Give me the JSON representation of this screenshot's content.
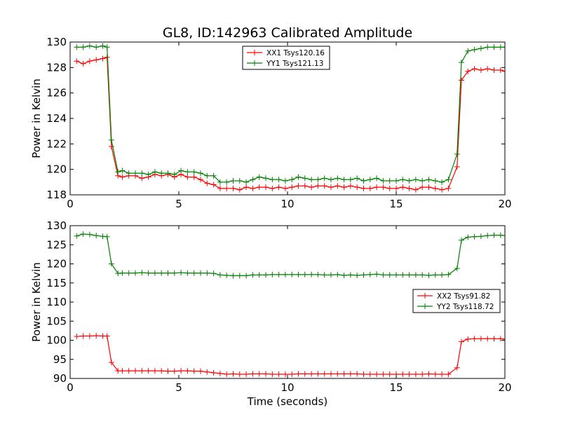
{
  "chart_data": [
    {
      "type": "line",
      "title": "GL8, ID:142963 Calibrated Amplitude",
      "xlabel": "",
      "ylabel": "Power in Kelvin",
      "xlim": [
        0,
        20
      ],
      "ylim": [
        118,
        130
      ],
      "xticks": [
        0,
        5,
        10,
        15,
        20
      ],
      "yticks": [
        118,
        120,
        122,
        124,
        126,
        128,
        130
      ],
      "legend_position": "top-center",
      "x": [
        0.3,
        0.6,
        0.9,
        1.2,
        1.5,
        1.7,
        1.9,
        2.2,
        2.4,
        2.7,
        3.0,
        3.3,
        3.6,
        3.9,
        4.2,
        4.5,
        4.8,
        5.1,
        5.4,
        5.7,
        6.0,
        6.3,
        6.6,
        6.9,
        7.2,
        7.5,
        7.8,
        8.1,
        8.4,
        8.7,
        9.0,
        9.3,
        9.6,
        9.9,
        10.2,
        10.5,
        10.8,
        11.1,
        11.4,
        11.7,
        12.0,
        12.3,
        12.6,
        12.9,
        13.2,
        13.5,
        13.8,
        14.1,
        14.4,
        14.7,
        15.0,
        15.3,
        15.6,
        15.9,
        16.2,
        16.5,
        16.8,
        17.1,
        17.4,
        17.8,
        18.0,
        18.3,
        18.6,
        18.9,
        19.2,
        19.5,
        19.8,
        20.0
      ],
      "series": [
        {
          "name": "XX1 Tsys120.16",
          "color": "#ff0000",
          "values": [
            128.5,
            128.3,
            128.5,
            128.6,
            128.7,
            128.8,
            121.8,
            119.5,
            119.4,
            119.5,
            119.5,
            119.3,
            119.4,
            119.6,
            119.5,
            119.6,
            119.4,
            119.6,
            119.4,
            119.4,
            119.2,
            118.9,
            118.8,
            118.5,
            118.5,
            118.5,
            118.4,
            118.6,
            118.5,
            118.6,
            118.6,
            118.5,
            118.6,
            118.5,
            118.6,
            118.7,
            118.7,
            118.6,
            118.7,
            118.7,
            118.6,
            118.7,
            118.6,
            118.7,
            118.6,
            118.5,
            118.5,
            118.6,
            118.6,
            118.5,
            118.5,
            118.6,
            118.5,
            118.4,
            118.6,
            118.6,
            118.5,
            118.4,
            118.5,
            120.2,
            127.0,
            127.7,
            127.9,
            127.8,
            127.9,
            127.8,
            127.8,
            127.7
          ]
        },
        {
          "name": "YY1 Tsys121.13",
          "color": "#008000",
          "values": [
            129.6,
            129.6,
            129.7,
            129.6,
            129.7,
            129.6,
            122.3,
            119.8,
            119.9,
            119.7,
            119.7,
            119.7,
            119.6,
            119.8,
            119.7,
            119.7,
            119.6,
            119.9,
            119.8,
            119.8,
            119.7,
            119.5,
            119.5,
            119.0,
            119.0,
            119.1,
            119.1,
            119.0,
            119.2,
            119.4,
            119.3,
            119.2,
            119.2,
            119.1,
            119.2,
            119.4,
            119.3,
            119.2,
            119.2,
            119.3,
            119.2,
            119.3,
            119.2,
            119.2,
            119.3,
            119.1,
            119.2,
            119.3,
            119.1,
            119.1,
            119.1,
            119.2,
            119.1,
            119.2,
            119.1,
            119.2,
            119.1,
            119.0,
            119.2,
            121.2,
            128.4,
            129.3,
            129.4,
            129.5,
            129.6,
            129.6,
            129.6,
            129.6
          ]
        }
      ]
    },
    {
      "type": "line",
      "title": "",
      "xlabel": "Time (seconds)",
      "ylabel": "Power in Kelvin",
      "xlim": [
        0,
        20
      ],
      "ylim": [
        90,
        130
      ],
      "xticks": [
        0,
        5,
        10,
        15,
        20
      ],
      "yticks": [
        90,
        95,
        100,
        105,
        110,
        115,
        120,
        125,
        130
      ],
      "legend_position": "center-right",
      "x": [
        0.3,
        0.6,
        0.9,
        1.2,
        1.5,
        1.7,
        1.9,
        2.2,
        2.4,
        2.7,
        3.0,
        3.3,
        3.6,
        3.9,
        4.2,
        4.5,
        4.8,
        5.1,
        5.4,
        5.7,
        6.0,
        6.3,
        6.6,
        6.9,
        7.2,
        7.5,
        7.8,
        8.1,
        8.4,
        8.7,
        9.0,
        9.3,
        9.6,
        9.9,
        10.2,
        10.5,
        10.8,
        11.1,
        11.4,
        11.7,
        12.0,
        12.3,
        12.6,
        12.9,
        13.2,
        13.5,
        13.8,
        14.1,
        14.4,
        14.7,
        15.0,
        15.3,
        15.6,
        15.9,
        16.2,
        16.5,
        16.8,
        17.1,
        17.4,
        17.8,
        18.0,
        18.3,
        18.6,
        18.9,
        19.2,
        19.5,
        19.8,
        20.0
      ],
      "series": [
        {
          "name": "XX2 Tsys91.82",
          "color": "#ff0000",
          "values": [
            101.0,
            101.1,
            101.1,
            101.2,
            101.1,
            101.1,
            94.2,
            92.0,
            92.0,
            92.0,
            92.0,
            92.0,
            92.0,
            92.0,
            92.0,
            91.9,
            91.9,
            92.0,
            92.0,
            91.9,
            91.9,
            91.7,
            91.5,
            91.3,
            91.1,
            91.2,
            91.1,
            91.1,
            91.2,
            91.2,
            91.2,
            91.1,
            91.1,
            91.1,
            91.1,
            91.2,
            91.2,
            91.2,
            91.2,
            91.2,
            91.2,
            91.2,
            91.2,
            91.2,
            91.2,
            91.1,
            91.1,
            91.1,
            91.1,
            91.1,
            91.1,
            91.1,
            91.1,
            91.1,
            91.1,
            91.2,
            91.1,
            91.1,
            91.1,
            92.8,
            99.6,
            100.3,
            100.4,
            100.4,
            100.4,
            100.4,
            100.4,
            100.3
          ]
        },
        {
          "name": "YY2 Tsys118.72",
          "color": "#008000",
          "values": [
            127.3,
            127.8,
            127.7,
            127.4,
            127.2,
            127.1,
            120.0,
            117.5,
            117.6,
            117.6,
            117.6,
            117.7,
            117.6,
            117.6,
            117.6,
            117.6,
            117.6,
            117.7,
            117.6,
            117.6,
            117.6,
            117.6,
            117.5,
            117.1,
            117.0,
            116.9,
            116.9,
            116.9,
            117.1,
            117.1,
            117.1,
            117.2,
            117.2,
            117.2,
            117.2,
            117.2,
            117.2,
            117.2,
            117.2,
            117.1,
            117.1,
            117.2,
            117.0,
            117.1,
            117.0,
            117.1,
            117.2,
            117.3,
            117.1,
            117.1,
            117.1,
            117.1,
            117.1,
            117.1,
            117.1,
            117.0,
            117.1,
            117.1,
            117.2,
            118.8,
            126.2,
            127.0,
            127.1,
            127.2,
            127.4,
            127.5,
            127.5,
            127.4
          ]
        }
      ]
    }
  ]
}
